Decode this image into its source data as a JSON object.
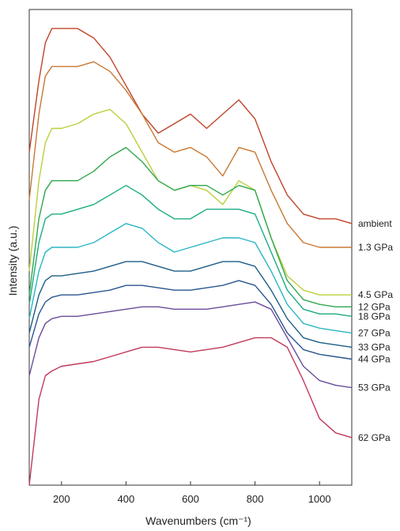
{
  "chart_data": {
    "type": "line",
    "xlabel": "Wavenumbers (cm⁻¹)",
    "ylabel": "Intensity (a.u.)",
    "xlim": [
      100,
      1100
    ],
    "xticks": [
      200,
      400,
      600,
      800,
      1000
    ],
    "ylim": [
      0,
      100
    ],
    "legend": "labels at right end of each trace",
    "grid": false,
    "stacked_offset": true,
    "series": [
      {
        "name": "ambient",
        "color": "#c0442a",
        "x": [
          100,
          130,
          150,
          170,
          200,
          250,
          300,
          350,
          400,
          450,
          500,
          550,
          600,
          650,
          700,
          750,
          800,
          850,
          900,
          950,
          1000,
          1050,
          1100
        ],
        "y": [
          70,
          85,
          93,
          96,
          96,
          96,
          94,
          90,
          84,
          78,
          74,
          76,
          78,
          75,
          78,
          81,
          77,
          68,
          61,
          57,
          56,
          56,
          55
        ]
      },
      {
        "name": "1.3 GPa",
        "color": "#c87833",
        "x": [
          100,
          130,
          150,
          170,
          200,
          250,
          300,
          350,
          400,
          450,
          500,
          550,
          600,
          650,
          700,
          750,
          800,
          850,
          900,
          950,
          1000,
          1050,
          1100
        ],
        "y": [
          60,
          78,
          86,
          88,
          88,
          88,
          89,
          87,
          83,
          78,
          72,
          70,
          71,
          69,
          65,
          71,
          70,
          62,
          55,
          51,
          50,
          50,
          50
        ]
      },
      {
        "name": "4.5 GPa",
        "color": "#bccf3c",
        "x": [
          100,
          130,
          150,
          170,
          200,
          250,
          300,
          350,
          400,
          450,
          500,
          550,
          600,
          650,
          700,
          750,
          800,
          850,
          900,
          950,
          1000,
          1050,
          1100
        ],
        "y": [
          45,
          64,
          72,
          75,
          75,
          76,
          78,
          79,
          76,
          70,
          64,
          62,
          63,
          62,
          59,
          64,
          62,
          52,
          44,
          41,
          40,
          40,
          40
        ]
      },
      {
        "name": "12 GPa",
        "color": "#2ea84c",
        "x": [
          100,
          130,
          150,
          170,
          200,
          250,
          300,
          350,
          400,
          450,
          500,
          550,
          600,
          650,
          700,
          750,
          800,
          850,
          900,
          950,
          1000,
          1050,
          1100
        ],
        "y": [
          40,
          56,
          62,
          64,
          64,
          64,
          66,
          69,
          71,
          68,
          64,
          62,
          63,
          63,
          61,
          63,
          62,
          52,
          43,
          39,
          38,
          37.5,
          37.5
        ]
      },
      {
        "name": "18 GPa",
        "color": "#1aac82",
        "x": [
          100,
          130,
          150,
          170,
          200,
          250,
          300,
          350,
          400,
          450,
          500,
          550,
          600,
          650,
          700,
          750,
          800,
          850,
          900,
          950,
          1000,
          1050,
          1100
        ],
        "y": [
          38,
          51,
          56,
          57,
          57,
          58,
          59,
          61,
          63,
          61,
          58,
          56,
          56,
          58,
          58,
          58,
          57,
          49,
          41,
          37,
          36,
          36,
          35.5
        ]
      },
      {
        "name": "27 GPa",
        "color": "#2ab6c2",
        "x": [
          100,
          130,
          150,
          170,
          200,
          250,
          300,
          350,
          400,
          450,
          500,
          550,
          600,
          650,
          700,
          750,
          800,
          850,
          900,
          950,
          1000,
          1050,
          1100
        ],
        "y": [
          35,
          45,
          49,
          50,
          50,
          50,
          51,
          53,
          55,
          54,
          51,
          49,
          50,
          51,
          52,
          52,
          51,
          45,
          38,
          34,
          33,
          32.5,
          32
        ]
      },
      {
        "name": "33 GPa",
        "color": "#1e5d86",
        "x": [
          100,
          130,
          150,
          170,
          200,
          250,
          300,
          350,
          400,
          450,
          500,
          550,
          600,
          650,
          700,
          750,
          800,
          850,
          900,
          950,
          1000,
          1050,
          1100
        ],
        "y": [
          32,
          40,
          43,
          44,
          44,
          44.5,
          45,
          46,
          47,
          47,
          46,
          45,
          45,
          46,
          47,
          47,
          46,
          41,
          35,
          31,
          30,
          29.5,
          29
        ]
      },
      {
        "name": "44 GPa",
        "color": "#2a5690",
        "x": [
          100,
          130,
          150,
          170,
          200,
          250,
          300,
          350,
          400,
          450,
          500,
          550,
          600,
          650,
          700,
          750,
          800,
          850,
          900,
          950,
          1000,
          1050,
          1100
        ],
        "y": [
          29,
          36,
          38.5,
          39.5,
          40,
          40,
          40.5,
          41,
          42,
          42,
          41.5,
          41,
          41,
          41.5,
          42,
          43,
          42,
          38,
          32,
          28.5,
          27.5,
          27,
          26.5
        ]
      },
      {
        "name": "53 GPa",
        "color": "#6a4c9a",
        "x": [
          100,
          130,
          150,
          170,
          200,
          250,
          300,
          350,
          400,
          450,
          500,
          550,
          600,
          650,
          700,
          750,
          800,
          850,
          900,
          950,
          1000,
          1050,
          1100
        ],
        "y": [
          23,
          31,
          34,
          35,
          35.5,
          35.5,
          36,
          36.5,
          37,
          37.5,
          37.5,
          37,
          37,
          37,
          37.5,
          38,
          38.5,
          37,
          31,
          25,
          22,
          21,
          20.5
        ]
      },
      {
        "name": "62 GPa",
        "color": "#c23a5a",
        "x": [
          100,
          130,
          150,
          170,
          200,
          250,
          300,
          350,
          400,
          450,
          500,
          550,
          600,
          650,
          700,
          750,
          800,
          850,
          900,
          950,
          1000,
          1050,
          1100
        ],
        "y": [
          0,
          18,
          23,
          24,
          25,
          25.5,
          26,
          27,
          28,
          29,
          29,
          28.5,
          28,
          28.5,
          29,
          30,
          31,
          31,
          29,
          22,
          14,
          11,
          10
        ]
      }
    ]
  }
}
